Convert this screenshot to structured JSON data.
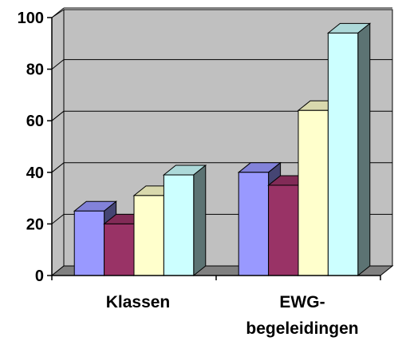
{
  "chart_data": {
    "type": "bar",
    "style": "3d-clustered-column",
    "categories": [
      "Klassen",
      "EWG-begeleidingen"
    ],
    "category_label_lines": [
      [
        "Klassen"
      ],
      [
        "EWG-",
        "begeleidingen"
      ]
    ],
    "series": [
      {
        "values": [
          25,
          40
        ],
        "color": "#9999ff"
      },
      {
        "values": [
          20,
          35
        ],
        "color": "#993366"
      },
      {
        "values": [
          31,
          64
        ],
        "color": "#ffffcc"
      },
      {
        "values": [
          39,
          94
        ],
        "color": "#ccffff"
      }
    ],
    "yticks": [
      "0",
      "20",
      "40",
      "60",
      "80",
      "100"
    ],
    "ylim": [
      0,
      100
    ],
    "grid": true,
    "wall_color": "#c0c0c0",
    "legend": "none"
  }
}
